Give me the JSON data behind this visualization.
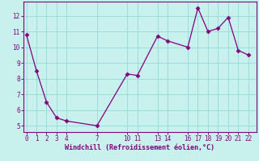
{
  "x": [
    0,
    1,
    2,
    3,
    4,
    7,
    10,
    11,
    13,
    14,
    16,
    17,
    18,
    19,
    20,
    21,
    22
  ],
  "y": [
    10.8,
    8.5,
    6.5,
    5.5,
    5.3,
    5.0,
    8.3,
    8.2,
    10.7,
    10.4,
    10.0,
    12.5,
    11.0,
    11.2,
    11.9,
    9.8,
    9.5
  ],
  "xticks": [
    0,
    1,
    2,
    3,
    4,
    7,
    10,
    11,
    13,
    14,
    16,
    17,
    18,
    19,
    20,
    21,
    22
  ],
  "yticks": [
    5,
    6,
    7,
    8,
    9,
    10,
    11,
    12
  ],
  "ylim": [
    4.6,
    12.9
  ],
  "xlim": [
    -0.3,
    22.8
  ],
  "xlabel": "Windchill (Refroidissement éolien,°C)",
  "line_color": "#800080",
  "marker": "D",
  "marker_size": 2.5,
  "bg_color": "#c8f0ec",
  "grid_color": "#99dddd",
  "xlabel_color": "#800080",
  "tick_color": "#800080",
  "spine_color": "#800080",
  "tick_fontsize": 5.5,
  "xlabel_fontsize": 6.0
}
